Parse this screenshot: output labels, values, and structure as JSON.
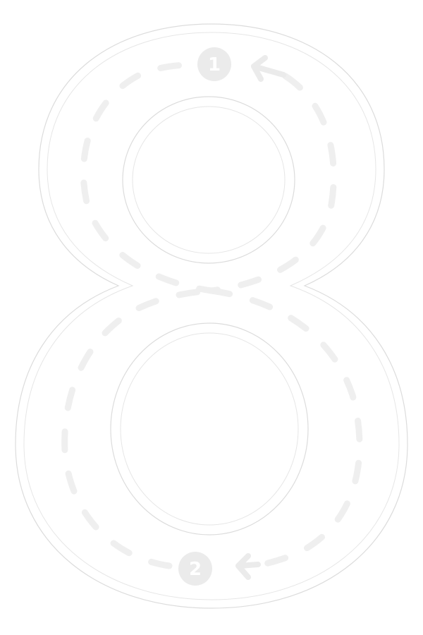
{
  "worksheet": {
    "digit": "8",
    "stroke_markers": [
      {
        "label": "1"
      },
      {
        "label": "2"
      }
    ]
  },
  "colors": {
    "outline": "#dcdcdc",
    "guide": "#efefef",
    "marker": "#ebebeb",
    "background": "#ffffff"
  }
}
